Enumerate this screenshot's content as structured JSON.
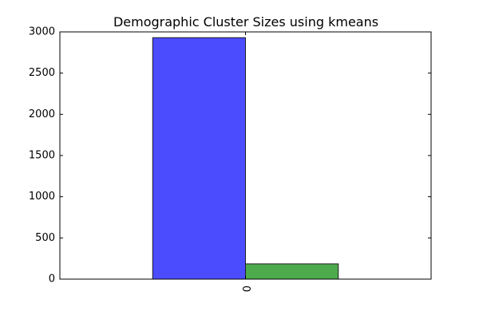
{
  "chart_data": {
    "type": "bar",
    "title": "Demographic Cluster Sizes using kmeans",
    "xlabel": "",
    "ylabel": "",
    "categories": [
      "0"
    ],
    "series": [
      {
        "values": [
          2930
        ],
        "color": "#4c4cff"
      },
      {
        "values": [
          185
        ],
        "color": "#4daa4d"
      }
    ],
    "ylim": [
      0,
      3000
    ],
    "yticks": [
      0,
      500,
      1000,
      1500,
      2000,
      2500,
      3000
    ],
    "grid": false,
    "legend": "none"
  }
}
